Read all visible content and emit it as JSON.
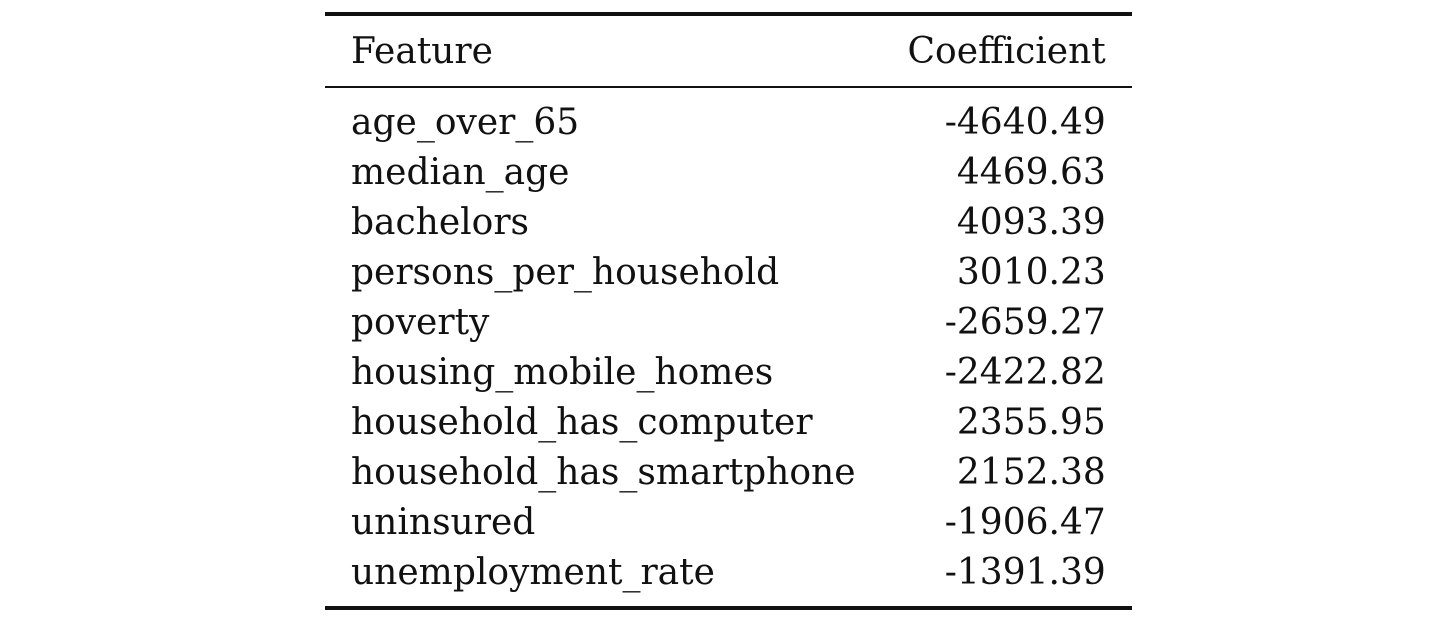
{
  "table": {
    "headers": {
      "feature": "Feature",
      "coefficient": "Coefficient"
    },
    "rows": [
      {
        "feature": "age_over_65",
        "coefficient": "-4640.49"
      },
      {
        "feature": "median_age",
        "coefficient": "4469.63"
      },
      {
        "feature": "bachelors",
        "coefficient": "4093.39"
      },
      {
        "feature": "persons_per_household",
        "coefficient": "3010.23"
      },
      {
        "feature": "poverty",
        "coefficient": "-2659.27"
      },
      {
        "feature": "housing_mobile_homes",
        "coefficient": "-2422.82"
      },
      {
        "feature": "household_has_computer",
        "coefficient": "2355.95"
      },
      {
        "feature": "household_has_smartphone",
        "coefficient": "2152.38"
      },
      {
        "feature": "uninsured",
        "coefficient": "-1906.47"
      },
      {
        "feature": "unemployment_rate",
        "coefficient": "-1391.39"
      }
    ]
  }
}
